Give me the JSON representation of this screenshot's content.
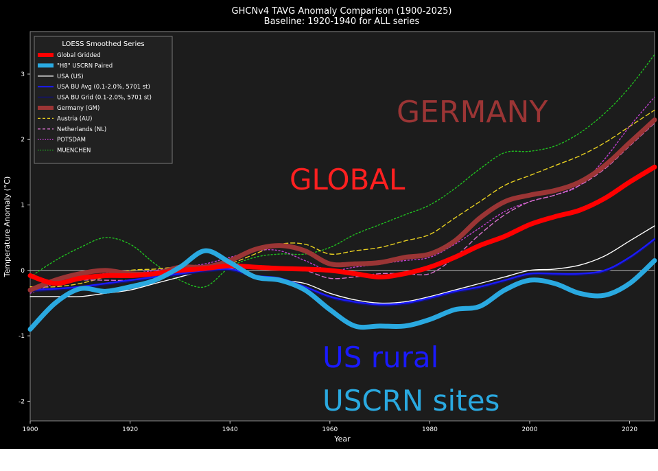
{
  "chart_data": {
    "type": "line",
    "title": "GHCNv4 TAVG Anomaly Comparison (1900-2025)",
    "subtitle": "Baseline: 1920-1940 for ALL series",
    "xlabel": "Year",
    "ylabel": "Temperature Anomaly (°C)",
    "xlim": [
      1900,
      2025
    ],
    "ylim": [
      -2.3,
      3.65
    ],
    "x_ticks": [
      1900,
      1920,
      1940,
      1960,
      1980,
      2000,
      2020
    ],
    "y_ticks": [
      -2,
      -1,
      0,
      1,
      2,
      3
    ],
    "grid": false,
    "zero_line": true,
    "legend": {
      "title": "LOESS Smoothed Series",
      "placement": "top-left"
    },
    "series": [
      {
        "name": "Global Gridded",
        "color": "#ff0000",
        "style": "solid",
        "width": "thick",
        "x": [
          1900,
          1905,
          1910,
          1915,
          1920,
          1925,
          1930,
          1935,
          1940,
          1945,
          1950,
          1955,
          1960,
          1965,
          1970,
          1975,
          1980,
          1985,
          1990,
          1995,
          2000,
          2005,
          2010,
          2015,
          2020,
          2025
        ],
        "y": [
          -0.08,
          -0.2,
          -0.12,
          -0.08,
          -0.08,
          -0.05,
          0,
          0.03,
          0.07,
          0.05,
          0.03,
          0.02,
          0,
          -0.05,
          -0.1,
          -0.05,
          0.05,
          0.2,
          0.38,
          0.52,
          0.7,
          0.82,
          0.92,
          1.1,
          1.35,
          1.58
        ]
      },
      {
        "name": "\"H8\" USCRN Paired",
        "color": "#2aa9e0",
        "style": "solid",
        "width": "thick",
        "x": [
          1900,
          1905,
          1910,
          1915,
          1920,
          1925,
          1930,
          1935,
          1940,
          1945,
          1950,
          1955,
          1960,
          1965,
          1970,
          1975,
          1980,
          1985,
          1990,
          1995,
          2000,
          2005,
          2010,
          2015,
          2020,
          2025
        ],
        "y": [
          -0.9,
          -0.5,
          -0.28,
          -0.32,
          -0.25,
          -0.15,
          0.05,
          0.3,
          0.12,
          -0.1,
          -0.15,
          -0.3,
          -0.6,
          -0.85,
          -0.85,
          -0.85,
          -0.75,
          -0.6,
          -0.55,
          -0.3,
          -0.15,
          -0.2,
          -0.35,
          -0.38,
          -0.2,
          0.15
        ]
      },
      {
        "name": "USA (US)",
        "color": "#ffffff",
        "style": "solid",
        "width": "thin",
        "x": [
          1900,
          1905,
          1910,
          1915,
          1920,
          1925,
          1930,
          1935,
          1940,
          1945,
          1950,
          1955,
          1960,
          1965,
          1970,
          1975,
          1980,
          1985,
          1990,
          1995,
          2000,
          2005,
          2010,
          2015,
          2020,
          2025
        ],
        "y": [
          -0.4,
          -0.4,
          -0.4,
          -0.35,
          -0.3,
          -0.2,
          -0.1,
          0,
          0.03,
          -0.1,
          -0.15,
          -0.2,
          -0.35,
          -0.45,
          -0.5,
          -0.48,
          -0.4,
          -0.3,
          -0.2,
          -0.1,
          0,
          0.02,
          0.08,
          0.22,
          0.45,
          0.68
        ]
      },
      {
        "name": "USA BU Avg (0.1-2.0%, 5701 st)",
        "color": "#1a1aff",
        "style": "solid",
        "width": "medium",
        "x": [
          1900,
          1905,
          1910,
          1915,
          1920,
          1925,
          1930,
          1935,
          1940,
          1945,
          1950,
          1955,
          1960,
          1965,
          1970,
          1975,
          1980,
          1985,
          1990,
          1995,
          2000,
          2005,
          2010,
          2015,
          2020,
          2025
        ],
        "y": [
          -0.3,
          -0.28,
          -0.25,
          -0.2,
          -0.15,
          -0.1,
          -0.05,
          0,
          0.02,
          -0.08,
          -0.12,
          -0.25,
          -0.4,
          -0.48,
          -0.52,
          -0.5,
          -0.42,
          -0.32,
          -0.25,
          -0.15,
          -0.05,
          -0.05,
          -0.05,
          0,
          0.2,
          0.48
        ]
      },
      {
        "name": "USA BU Grid (0.1-2.0%, 5701 st)",
        "color": "#151560",
        "style": "solid",
        "width": "medium",
        "x": [
          1900,
          1905,
          1910,
          1915,
          1920,
          1925,
          1930,
          1935,
          1940,
          1945,
          1950,
          1955,
          1960,
          1965,
          1970,
          1975,
          1980,
          1985,
          1990,
          1995,
          2000,
          2005,
          2010,
          2015,
          2020,
          2025
        ],
        "y": [
          -0.32,
          -0.3,
          -0.27,
          -0.22,
          -0.17,
          -0.12,
          -0.07,
          -0.02,
          0,
          -0.1,
          -0.14,
          -0.27,
          -0.42,
          -0.5,
          -0.54,
          -0.52,
          -0.44,
          -0.34,
          -0.27,
          -0.17,
          -0.07,
          -0.07,
          -0.07,
          -0.02,
          0.18,
          0.46
        ]
      },
      {
        "name": "Germany (GM)",
        "color": "#9b3535",
        "style": "solid",
        "width": "thick",
        "x": [
          1900,
          1905,
          1910,
          1915,
          1920,
          1925,
          1930,
          1935,
          1940,
          1945,
          1950,
          1955,
          1960,
          1965,
          1970,
          1975,
          1980,
          1985,
          1990,
          1995,
          2000,
          2005,
          2010,
          2015,
          2020,
          2025
        ],
        "y": [
          -0.3,
          -0.15,
          -0.05,
          0,
          -0.05,
          -0.05,
          0.05,
          0.05,
          0.15,
          0.32,
          0.38,
          0.3,
          0.1,
          0.1,
          0.12,
          0.2,
          0.25,
          0.45,
          0.8,
          1.05,
          1.15,
          1.22,
          1.35,
          1.6,
          1.95,
          2.3
        ]
      },
      {
        "name": "Austria (AU)",
        "color": "#e8d020",
        "style": "dashed",
        "width": "thin",
        "x": [
          1900,
          1905,
          1910,
          1915,
          1920,
          1925,
          1930,
          1935,
          1940,
          1945,
          1950,
          1955,
          1960,
          1965,
          1970,
          1975,
          1980,
          1985,
          1990,
          1995,
          2000,
          2005,
          2010,
          2015,
          2020,
          2025
        ],
        "y": [
          -0.25,
          -0.25,
          -0.2,
          -0.1,
          0,
          0.02,
          0.05,
          0,
          0.1,
          0.25,
          0.4,
          0.4,
          0.25,
          0.3,
          0.35,
          0.45,
          0.55,
          0.8,
          1.05,
          1.3,
          1.45,
          1.6,
          1.75,
          1.95,
          2.2,
          2.45
        ]
      },
      {
        "name": "Netherlands (NL)",
        "color": "#d36fc8",
        "style": "dashed",
        "width": "thin",
        "x": [
          1900,
          1905,
          1910,
          1915,
          1920,
          1925,
          1930,
          1935,
          1940,
          1945,
          1950,
          1955,
          1960,
          1965,
          1970,
          1975,
          1980,
          1985,
          1990,
          1995,
          2000,
          2005,
          2010,
          2015,
          2020,
          2025
        ],
        "y": [
          -0.3,
          -0.2,
          -0.15,
          -0.15,
          -0.15,
          -0.1,
          -0.05,
          0,
          0.05,
          0.05,
          0.05,
          0,
          -0.12,
          -0.1,
          -0.05,
          -0.05,
          -0.05,
          0.2,
          0.55,
          0.85,
          1.05,
          1.15,
          1.3,
          1.55,
          1.9,
          2.25
        ]
      },
      {
        "name": "POTSDAM",
        "color": "#c040d0",
        "style": "dotted",
        "width": "thin",
        "x": [
          1900,
          1905,
          1910,
          1915,
          1920,
          1925,
          1930,
          1935,
          1940,
          1945,
          1950,
          1955,
          1960,
          1965,
          1970,
          1975,
          1980,
          1985,
          1990,
          1995,
          2000,
          2005,
          2010,
          2015,
          2020,
          2025
        ],
        "y": [
          -0.35,
          -0.2,
          -0.1,
          -0.05,
          -0.05,
          0,
          0.05,
          0.1,
          0.2,
          0.3,
          0.3,
          0.15,
          0,
          0.05,
          0.1,
          0.15,
          0.2,
          0.4,
          0.65,
          0.9,
          1.05,
          1.15,
          1.3,
          1.7,
          2.2,
          2.65
        ]
      },
      {
        "name": "MUENCHEN",
        "color": "#20c020",
        "style": "dotted",
        "width": "thin",
        "x": [
          1900,
          1905,
          1910,
          1915,
          1920,
          1925,
          1930,
          1935,
          1940,
          1945,
          1950,
          1955,
          1960,
          1965,
          1970,
          1975,
          1980,
          1985,
          1990,
          1995,
          2000,
          2005,
          2010,
          2015,
          2020,
          2025
        ],
        "y": [
          -0.1,
          0.15,
          0.35,
          0.5,
          0.4,
          0.1,
          -0.15,
          -0.25,
          0.05,
          0.2,
          0.25,
          0.25,
          0.35,
          0.55,
          0.7,
          0.85,
          1.0,
          1.25,
          1.55,
          1.8,
          1.82,
          1.9,
          2.1,
          2.4,
          2.8,
          3.3
        ]
      }
    ],
    "annotations": [
      {
        "text": "GERMANY",
        "color": "#9b3535"
      },
      {
        "text": "GLOBAL",
        "color": "#ff2020"
      },
      {
        "text": "US rural",
        "color": "#1a1aff"
      },
      {
        "text": "USCRN sites",
        "color": "#2aa9e0"
      }
    ]
  }
}
